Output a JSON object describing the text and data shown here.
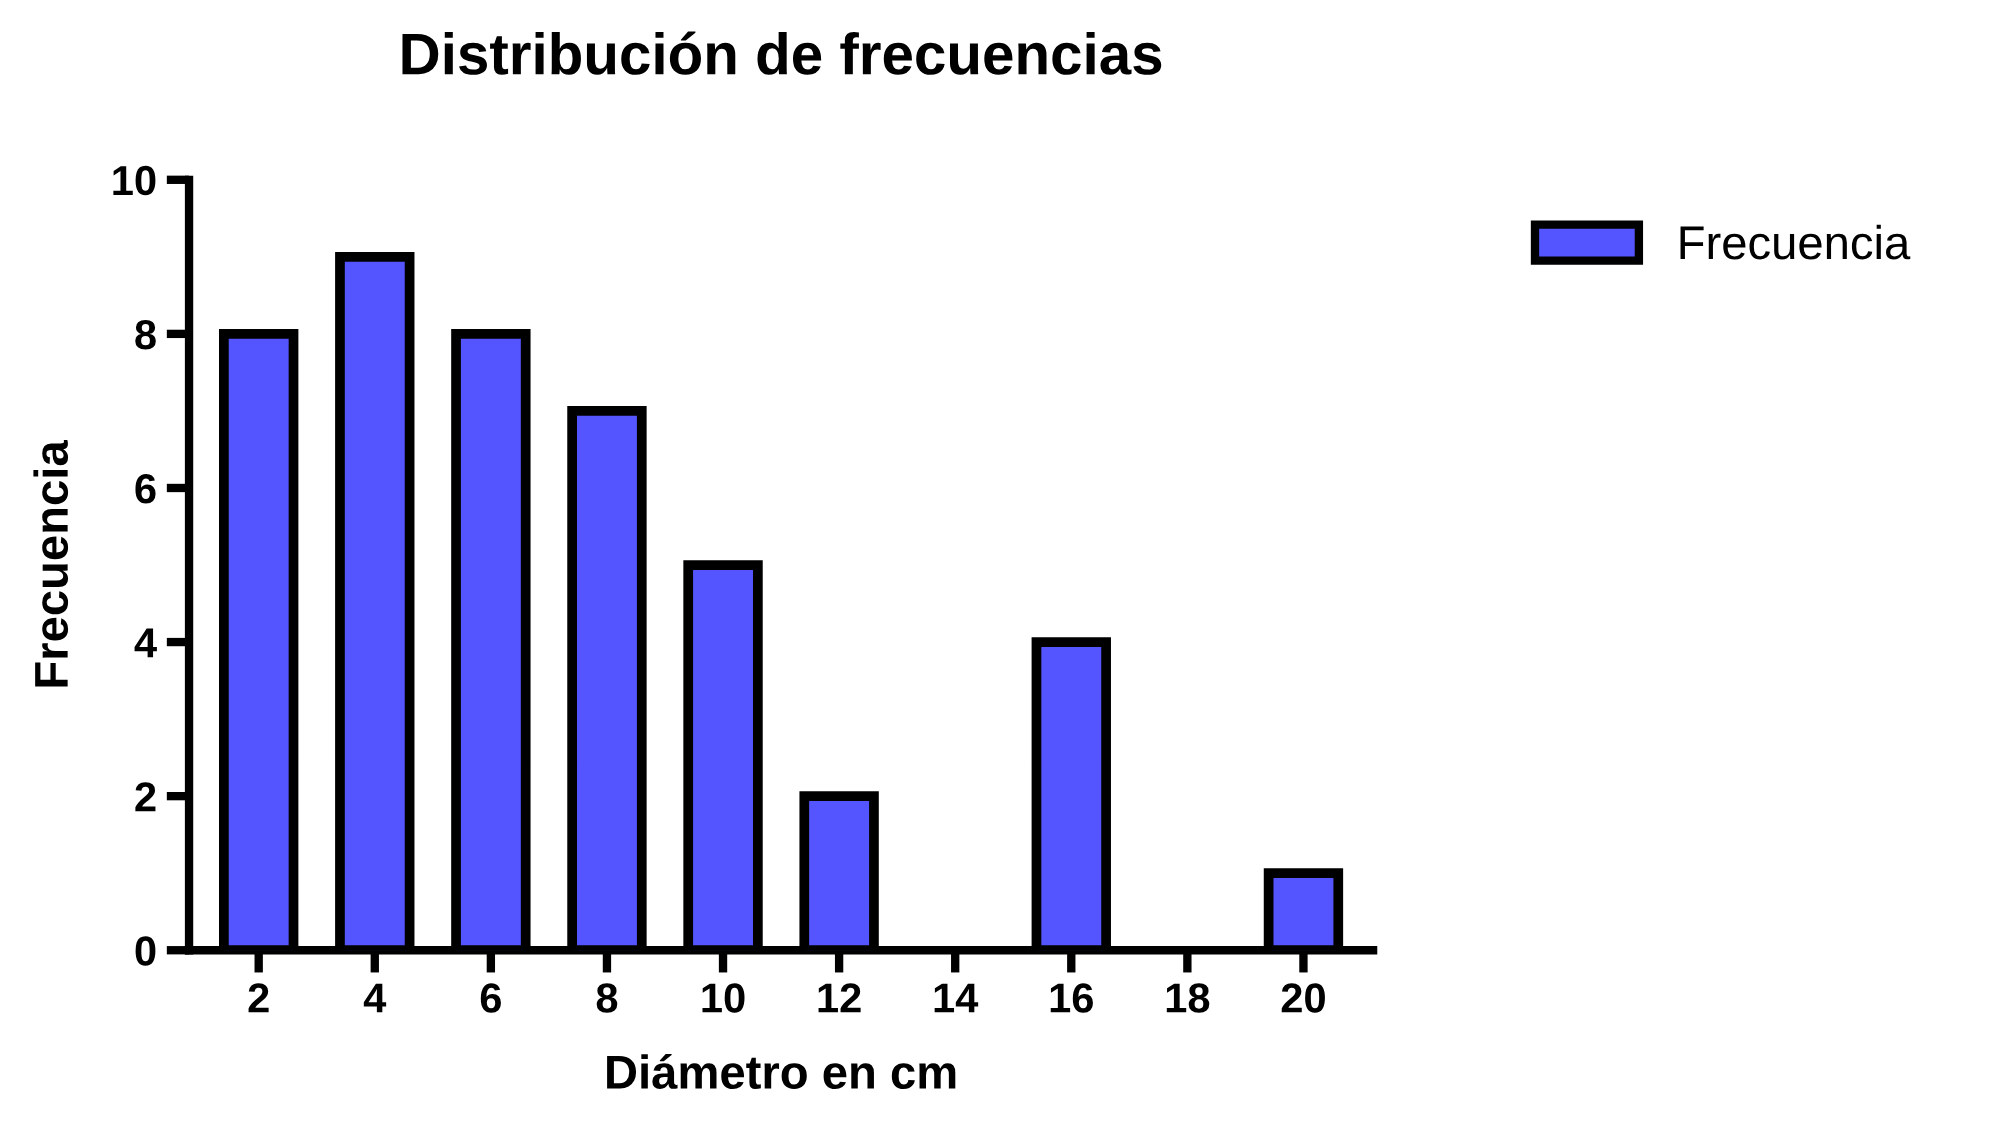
{
  "chart_data": {
    "type": "bar",
    "title": "Distribución de frecuencias",
    "xlabel": "Diámetro en cm",
    "ylabel": "Frecuencia",
    "categories": [
      "2",
      "4",
      "6",
      "8",
      "10",
      "12",
      "14",
      "16",
      "18",
      "20"
    ],
    "series": [
      {
        "name": "Frecuencia",
        "color": "#5555ff",
        "values": [
          8,
          9,
          8,
          7,
          5,
          2,
          0,
          4,
          0,
          1
        ]
      }
    ],
    "ylim": [
      0,
      10
    ],
    "yticks": [
      0,
      2,
      4,
      6,
      8,
      10
    ],
    "grid": false,
    "legend": "top right"
  }
}
